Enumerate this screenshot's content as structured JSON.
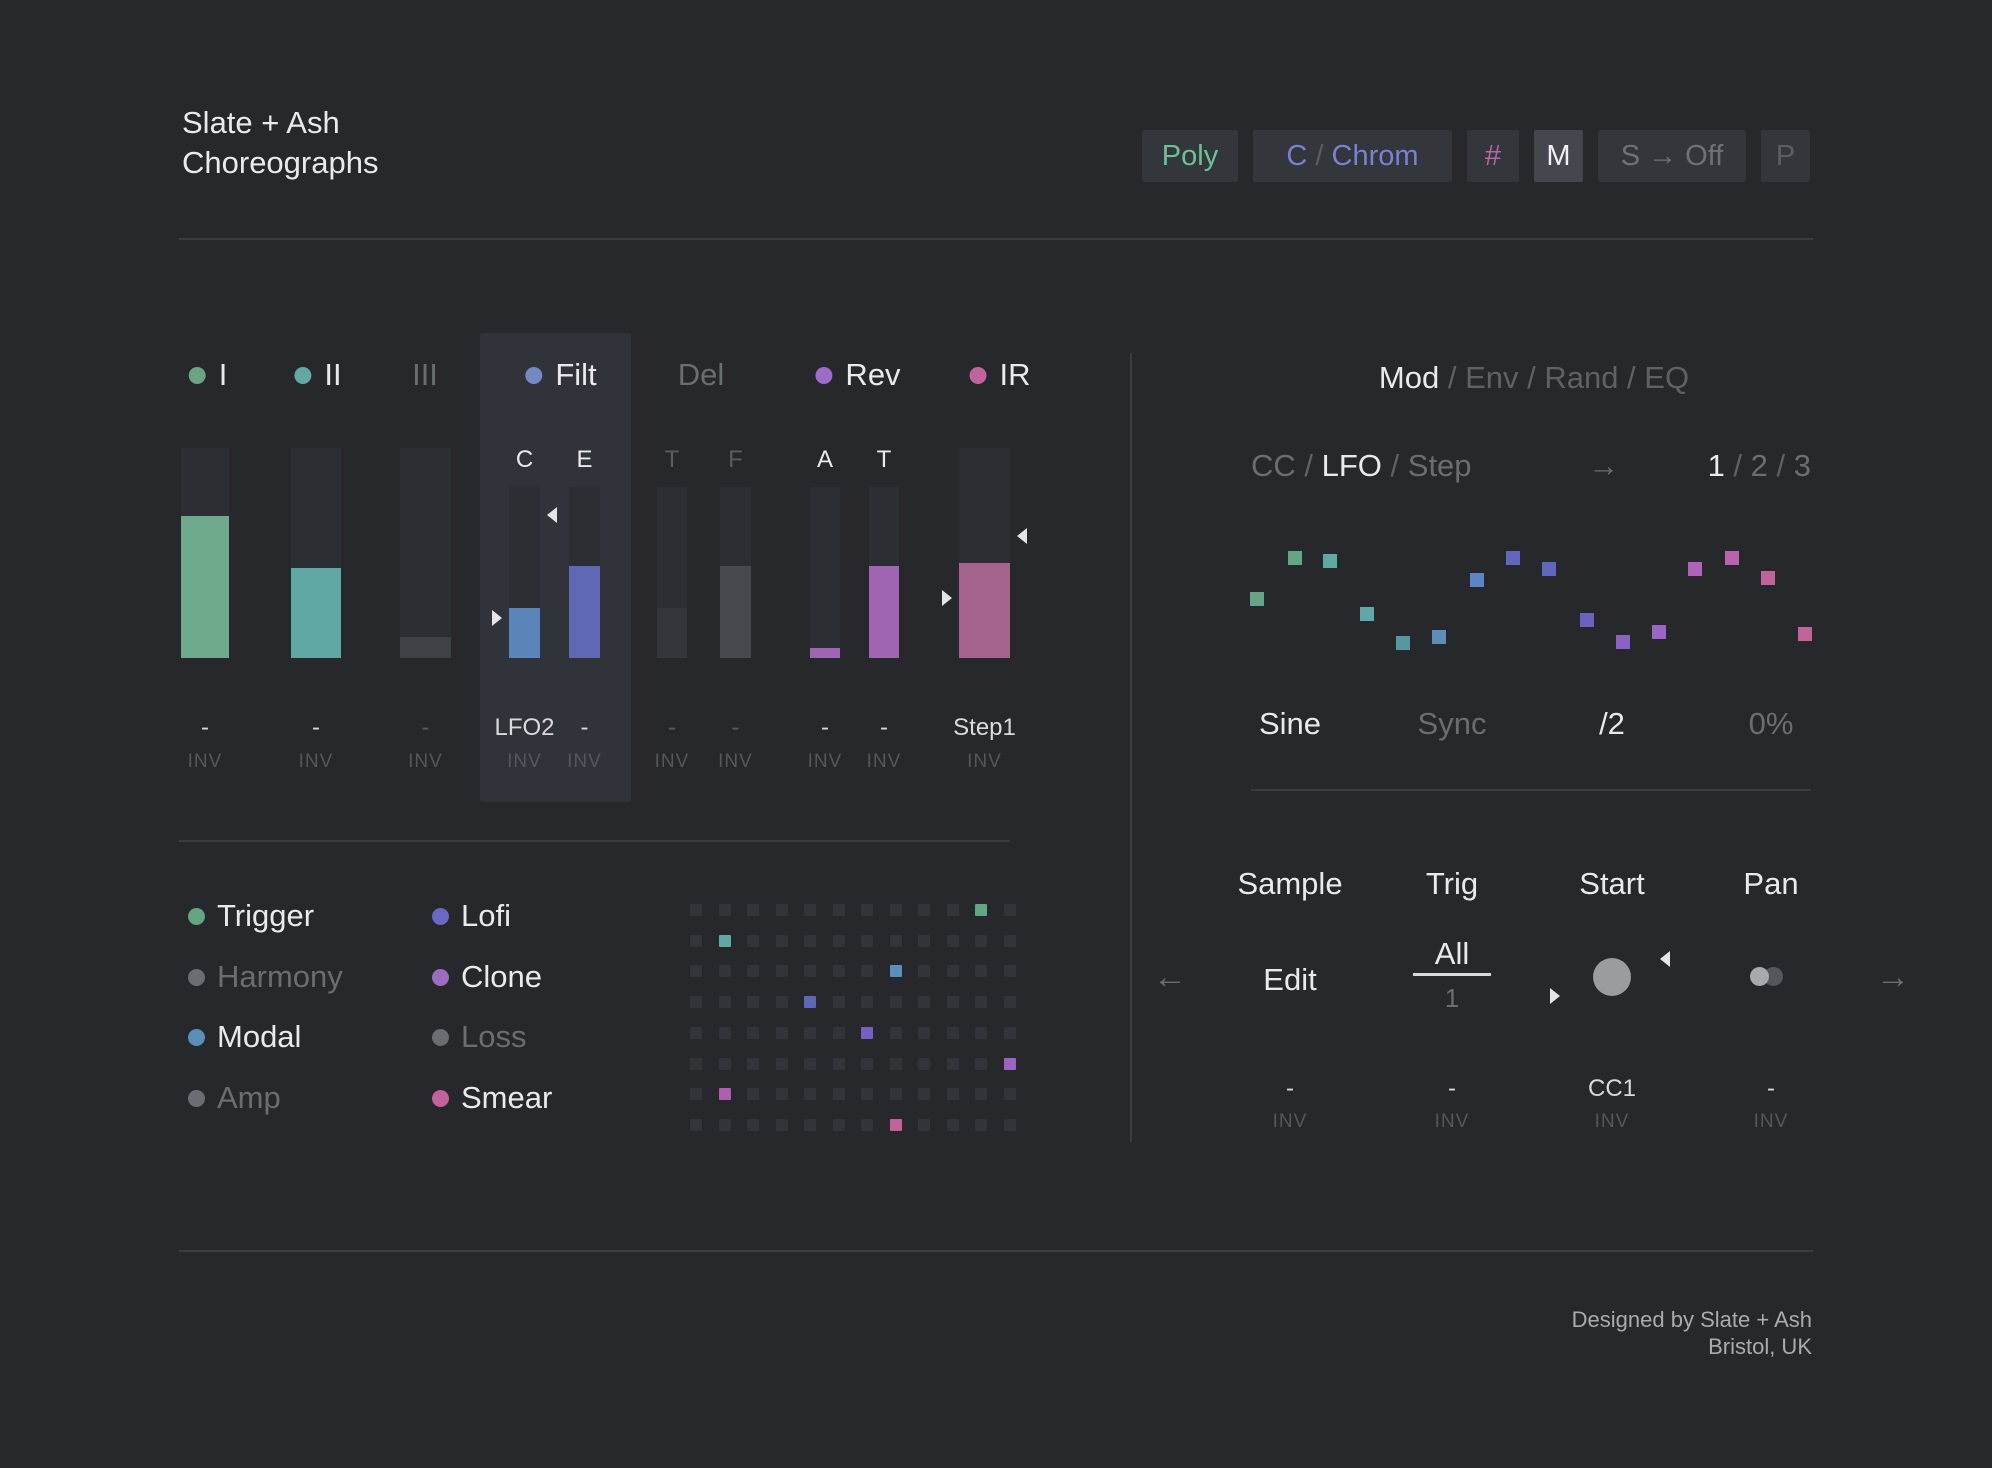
{
  "header": {
    "title_lines": [
      "Slate + Ash",
      "Choreographs"
    ],
    "buttons": [
      {
        "id": "poly",
        "parts": [
          {
            "t": "Poly",
            "c": "#6FBF9A"
          }
        ],
        "bg": "#33363B"
      },
      {
        "id": "chrom",
        "parts": [
          {
            "t": "C",
            "c": "#7B80D2"
          },
          {
            "t": " / ",
            "c": "#5A5D62"
          },
          {
            "t": "Chrom",
            "c": "#7B80D2"
          }
        ],
        "bg": "#33363B"
      },
      {
        "id": "sharp",
        "parts": [
          {
            "t": "#",
            "c": "#B468A6"
          }
        ],
        "bg": "#33363B"
      },
      {
        "id": "mono",
        "parts": [
          {
            "t": "M",
            "c": "#F0F0F1"
          }
        ],
        "bg": "#44474D"
      },
      {
        "id": "s-off",
        "parts": [
          {
            "t": "S → Off",
            "c": "#6E7176"
          }
        ],
        "bg": "#33363B"
      },
      {
        "id": "p",
        "parts": [
          {
            "t": "P",
            "c": "#5A5D62"
          }
        ],
        "bg": "#33363B"
      }
    ]
  },
  "channels": [
    {
      "label": "I",
      "dot": "#6BA385",
      "inactive": false,
      "selected": false,
      "bars": [
        {
          "key": "",
          "value": "-",
          "inv": "INV",
          "fill": 0.676,
          "color": "#6FAA8C",
          "dimval": false
        }
      ]
    },
    {
      "label": "II",
      "dot": "#63A8A3",
      "inactive": false,
      "selected": false,
      "bars": [
        {
          "key": "",
          "value": "-",
          "inv": "INV",
          "fill": 0.43,
          "color": "#5FA8A3",
          "dimval": false
        }
      ]
    },
    {
      "label": "III",
      "dot": null,
      "inactive": true,
      "selected": false,
      "bars": [
        {
          "key": "",
          "value": "-",
          "inv": "INV",
          "fill": 0.1,
          "color": "#3E4247",
          "dimval": true
        }
      ]
    },
    {
      "label": "Filt",
      "dot": "#7289C4",
      "inactive": false,
      "selected": true,
      "bars": [
        {
          "key": "C",
          "keydim": false,
          "value": "LFO2",
          "inv": "INV",
          "fill": 0.29,
          "color": "#5B85B8",
          "dimval": false,
          "arrowL": 0.766,
          "arrowR": 0.164
        },
        {
          "key": "E",
          "keydim": false,
          "value": "-",
          "inv": "INV",
          "fill": 0.538,
          "color": "#5E68B4",
          "dimval": false
        }
      ]
    },
    {
      "label": "Del",
      "dot": null,
      "inactive": true,
      "selected": false,
      "bars": [
        {
          "key": "T",
          "keydim": true,
          "value": "-",
          "inv": "INV",
          "fill": 0.29,
          "color": "#33363B",
          "dimval": true
        },
        {
          "key": "F",
          "keydim": true,
          "value": "-",
          "inv": "INV",
          "fill": 0.538,
          "color": "#46494E",
          "dimval": true
        }
      ]
    },
    {
      "label": "Rev",
      "dot": "#9B6CC8",
      "inactive": false,
      "selected": false,
      "bars": [
        {
          "key": "A",
          "keydim": false,
          "value": "-",
          "inv": "INV",
          "fill": 0.058,
          "color": "#A065B2",
          "dimval": false
        },
        {
          "key": "T",
          "keydim": false,
          "value": "-",
          "inv": "INV",
          "fill": 0.538,
          "color": "#A065B2",
          "dimval": false
        }
      ]
    },
    {
      "label": "IR",
      "dot": "#C0659B",
      "inactive": false,
      "selected": false,
      "bars": [
        {
          "key": "",
          "value": "Step1",
          "inv": "INV",
          "fill": 0.452,
          "color": "#A5648E",
          "dimval": false,
          "arrowL": 0.714,
          "arrowR": 0.419
        }
      ]
    }
  ],
  "sources": {
    "columns": [
      [
        {
          "label": "Trigger",
          "dot": "#64A583",
          "active": true
        },
        {
          "label": "Harmony",
          "dot": "#6A6D72",
          "active": false
        },
        {
          "label": "Modal",
          "dot": "#5B8FB8",
          "active": true
        },
        {
          "label": "Amp",
          "dot": "#6A6D72",
          "active": false
        }
      ],
      [
        {
          "label": "Lofi",
          "dot": "#6A68C0",
          "active": true
        },
        {
          "label": "Clone",
          "dot": "#9B6CC0",
          "active": true
        },
        {
          "label": "Loss",
          "dot": "#6A6D72",
          "active": false
        },
        {
          "label": "Smear",
          "dot": "#C0629B",
          "active": true
        }
      ]
    ]
  },
  "matrix": {
    "rows": 8,
    "cols": 12,
    "cell_color": "#31353A",
    "active_cells": [
      {
        "r": 0,
        "c": 10,
        "color": "#64A585"
      },
      {
        "r": 1,
        "c": 1,
        "color": "#5FA8A3"
      },
      {
        "r": 2,
        "c": 7,
        "color": "#5B8FB8"
      },
      {
        "r": 3,
        "c": 4,
        "color": "#5F68B4"
      },
      {
        "r": 4,
        "c": 6,
        "color": "#7660C0"
      },
      {
        "r": 5,
        "c": 11,
        "color": "#9B64C0"
      },
      {
        "r": 6,
        "c": 1,
        "color": "#B05FB0"
      },
      {
        "r": 7,
        "c": 7,
        "color": "#C0639B"
      }
    ]
  },
  "mod_panel": {
    "tabs": [
      {
        "label": "Mod",
        "active": true
      },
      {
        "label": "Env",
        "active": false
      },
      {
        "label": "Rand",
        "active": false
      },
      {
        "label": "EQ",
        "active": false
      }
    ],
    "type_tabs": [
      {
        "label": "CC",
        "active": false
      },
      {
        "label": "LFO",
        "active": true
      },
      {
        "label": "Step",
        "active": false
      }
    ],
    "route_arrow": "→",
    "slot_tabs": [
      {
        "label": "1",
        "active": true
      },
      {
        "label": "2",
        "active": false
      },
      {
        "label": "3",
        "active": false
      }
    ],
    "lfo": {
      "type": "scatter",
      "points": [
        [
          6,
          59
        ],
        [
          44,
          18
        ],
        [
          79,
          21
        ],
        [
          116,
          74
        ],
        [
          152,
          103
        ],
        [
          188,
          97
        ],
        [
          226,
          40
        ],
        [
          262,
          18
        ],
        [
          298,
          29
        ],
        [
          336,
          80
        ],
        [
          372,
          102
        ],
        [
          408,
          92
        ],
        [
          444,
          29
        ],
        [
          481,
          18
        ],
        [
          517,
          38
        ],
        [
          554,
          94
        ]
      ],
      "colors": [
        "#64A585",
        "#64A585",
        "#5FA8A3",
        "#5FA8A3",
        "#57989F",
        "#5B8FB8",
        "#5B85C4",
        "#5F68BC",
        "#5F68BC",
        "#6A62C0",
        "#8862C4",
        "#9A66C4",
        "#B062B8",
        "#B864AB",
        "#C0629B",
        "#C0649B"
      ]
    },
    "params": [
      {
        "label": "Sine",
        "active": true
      },
      {
        "label": "Sync",
        "active": false
      },
      {
        "label": "/2",
        "active": true
      },
      {
        "label": "0%",
        "active": false
      }
    ],
    "columns": [
      {
        "header": "Sample",
        "value": "-",
        "inv": "INV"
      },
      {
        "header": "Trig",
        "value": "-",
        "inv": "INV"
      },
      {
        "header": "Start",
        "value": "CC1",
        "inv": "INV"
      },
      {
        "header": "Pan",
        "value": "-",
        "inv": "INV"
      }
    ],
    "controls": {
      "edit": "Edit",
      "trig_top": "All",
      "trig_bottom": "1",
      "nav_left": "←",
      "nav_right": "→"
    }
  },
  "footer": {
    "line1": "Designed by Slate + Ash",
    "line2": "Bristol, UK"
  }
}
